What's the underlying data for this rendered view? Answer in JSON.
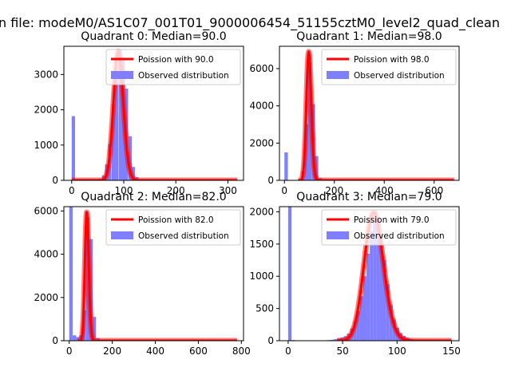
{
  "figure": {
    "suptitle": "n file: modeM0/AS1C07_001T01_9000006454_51155cztM0_level2_quad_clean"
  },
  "colors": {
    "poisson": "#ff0000",
    "poisson_thick": "#ff0000",
    "histogram": "#7f7fff",
    "axis": "#000000"
  },
  "chart_data": [
    {
      "type": "bar",
      "title": "Quadrant 0: Median=90.0",
      "xlim": [
        -15,
        330
      ],
      "ylim": [
        0,
        3800
      ],
      "xticks": [
        0,
        100,
        200,
        300
      ],
      "yticks": [
        0,
        1000,
        2000,
        3000
      ],
      "legend_position": "upper-right",
      "series": [
        {
          "name": "Poission with 90.0",
          "kind": "poisson-line",
          "mean": 90,
          "peak": 3650,
          "x_start": 0,
          "x_end": 318
        },
        {
          "name": "Observed distribution",
          "kind": "histogram",
          "bin_width": 6.4,
          "bins": [
            [
              0,
              1820
            ],
            [
              51,
              40
            ],
            [
              58,
              140
            ],
            [
              64,
              450
            ],
            [
              70,
              1030
            ],
            [
              77,
              2150
            ],
            [
              83,
              3050
            ],
            [
              90,
              3700
            ],
            [
              96,
              3400
            ],
            [
              102,
              2600
            ],
            [
              109,
              1250
            ],
            [
              115,
              380
            ],
            [
              122,
              90
            ]
          ]
        }
      ]
    },
    {
      "type": "bar",
      "title": "Quadrant 1: Median=98.0",
      "xlim": [
        -20,
        700
      ],
      "ylim": [
        0,
        7200
      ],
      "xticks": [
        0,
        200,
        400,
        600
      ],
      "yticks": [
        0,
        2000,
        4000,
        6000
      ],
      "legend_position": "upper-right",
      "series": [
        {
          "name": "Poission with 98.0",
          "kind": "poisson-line",
          "mean": 98,
          "peak": 6900,
          "x_start": 55,
          "x_end": 680
        },
        {
          "name": "Observed distribution",
          "kind": "histogram",
          "bin_width": 13.6,
          "bins": [
            [
              0,
              1500
            ],
            [
              68,
              500
            ],
            [
              82,
              3000
            ],
            [
              95,
              6300
            ],
            [
              109,
              4100
            ],
            [
              122,
              1300
            ],
            [
              136,
              120
            ]
          ]
        }
      ]
    },
    {
      "type": "bar",
      "title": "Quadrant 2: Median=82.0",
      "xlim": [
        -25,
        810
      ],
      "ylim": [
        0,
        6200
      ],
      "xticks": [
        0,
        200,
        400,
        600,
        800
      ],
      "yticks": [
        0,
        2000,
        4000,
        6000
      ],
      "legend_position": "upper-right",
      "series": [
        {
          "name": "Poission with 82.0",
          "kind": "poisson-line",
          "mean": 82,
          "peak": 5950,
          "x_start": 40,
          "x_end": 780
        },
        {
          "name": "Observed distribution",
          "kind": "histogram",
          "bin_width": 15.6,
          "bins": [
            [
              0,
              6200
            ],
            [
              16,
              250
            ],
            [
              31,
              170
            ],
            [
              47,
              250
            ],
            [
              62,
              1400
            ],
            [
              78,
              5700
            ],
            [
              94,
              4700
            ],
            [
              109,
              1100
            ],
            [
              125,
              120
            ]
          ]
        }
      ]
    },
    {
      "type": "bar",
      "title": "Quadrant 3: Median=79.0",
      "xlim": [
        -8,
        157
      ],
      "ylim": [
        0,
        2080
      ],
      "xticks": [
        0,
        50,
        100,
        150
      ],
      "yticks": [
        0,
        500,
        1000,
        1500,
        2000
      ],
      "legend_position": "upper-right",
      "series": [
        {
          "name": "Poission with 79.0",
          "kind": "poisson-line",
          "mean": 79,
          "peak": 1990,
          "x_start": 45,
          "x_end": 150
        },
        {
          "name": "Observed distribution",
          "kind": "histogram",
          "bin_width": 3,
          "bins": [
            [
              0,
              2080
            ],
            [
              3,
              10
            ],
            [
              36,
              10
            ],
            [
              39,
              15
            ],
            [
              42,
              25
            ],
            [
              45,
              35
            ],
            [
              48,
              50
            ],
            [
              51,
              70
            ],
            [
              54,
              110
            ],
            [
              57,
              190
            ],
            [
              60,
              300
            ],
            [
              63,
              460
            ],
            [
              66,
              690
            ],
            [
              69,
              1000
            ],
            [
              72,
              1350
            ],
            [
              75,
              1700
            ],
            [
              78,
              1950
            ],
            [
              81,
              1920
            ],
            [
              84,
              1650
            ],
            [
              87,
              1250
            ],
            [
              90,
              880
            ],
            [
              93,
              560
            ],
            [
              96,
              330
            ],
            [
              99,
              200
            ],
            [
              102,
              120
            ],
            [
              105,
              75
            ],
            [
              108,
              45
            ],
            [
              111,
              28
            ],
            [
              114,
              15
            ],
            [
              117,
              10
            ]
          ]
        }
      ]
    }
  ]
}
